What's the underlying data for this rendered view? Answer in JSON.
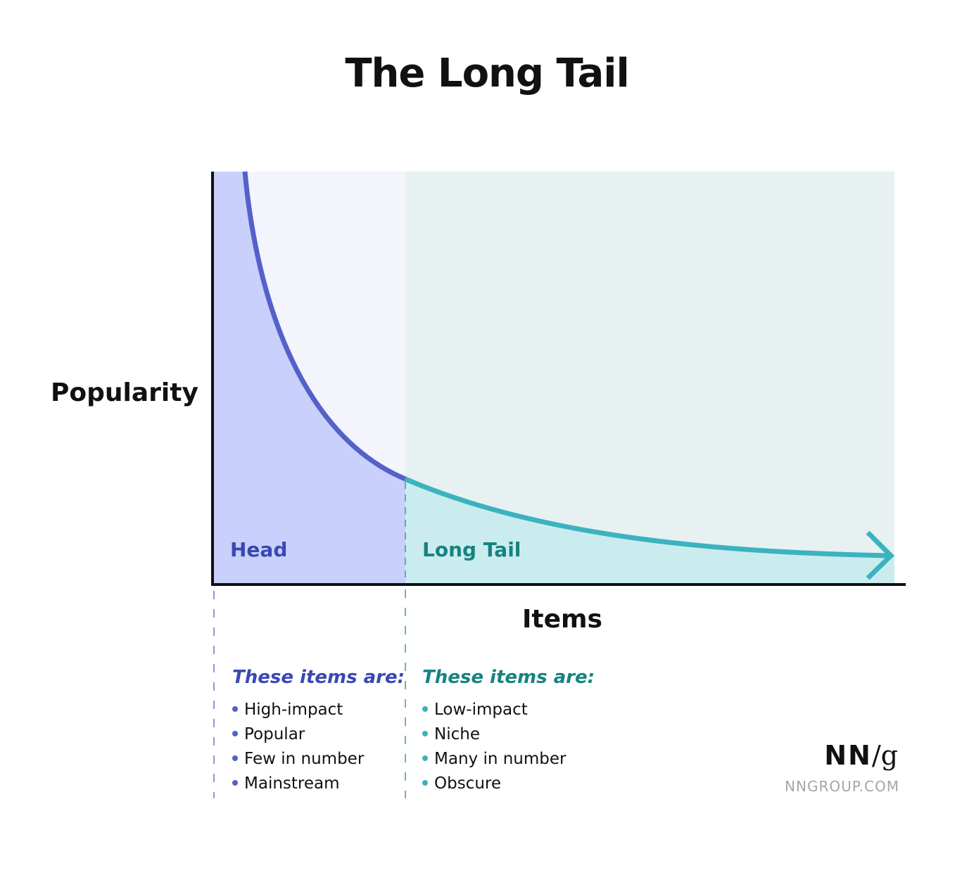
{
  "title": "The Long Tail",
  "y_axis_label": "Popularity",
  "x_axis_label": "Items",
  "regions": {
    "head": {
      "label": "Head",
      "color": "#5560c9",
      "text_color": "#3a48b4",
      "fill": "#c8d0fb"
    },
    "tail": {
      "label": "Long Tail",
      "color": "#3bb3bf",
      "text_color": "#16837f",
      "fill": "#cbecee"
    }
  },
  "head_list": {
    "heading": "These items are:",
    "items": [
      "High-impact",
      "Popular",
      "Few in number",
      "Mainstream"
    ]
  },
  "tail_list": {
    "heading": "These items are:",
    "items": [
      "Low-impact",
      "Niche",
      "Many in number",
      "Obscure"
    ]
  },
  "logo": {
    "text": "NN/g",
    "url": "NNGROUP.COM"
  }
}
